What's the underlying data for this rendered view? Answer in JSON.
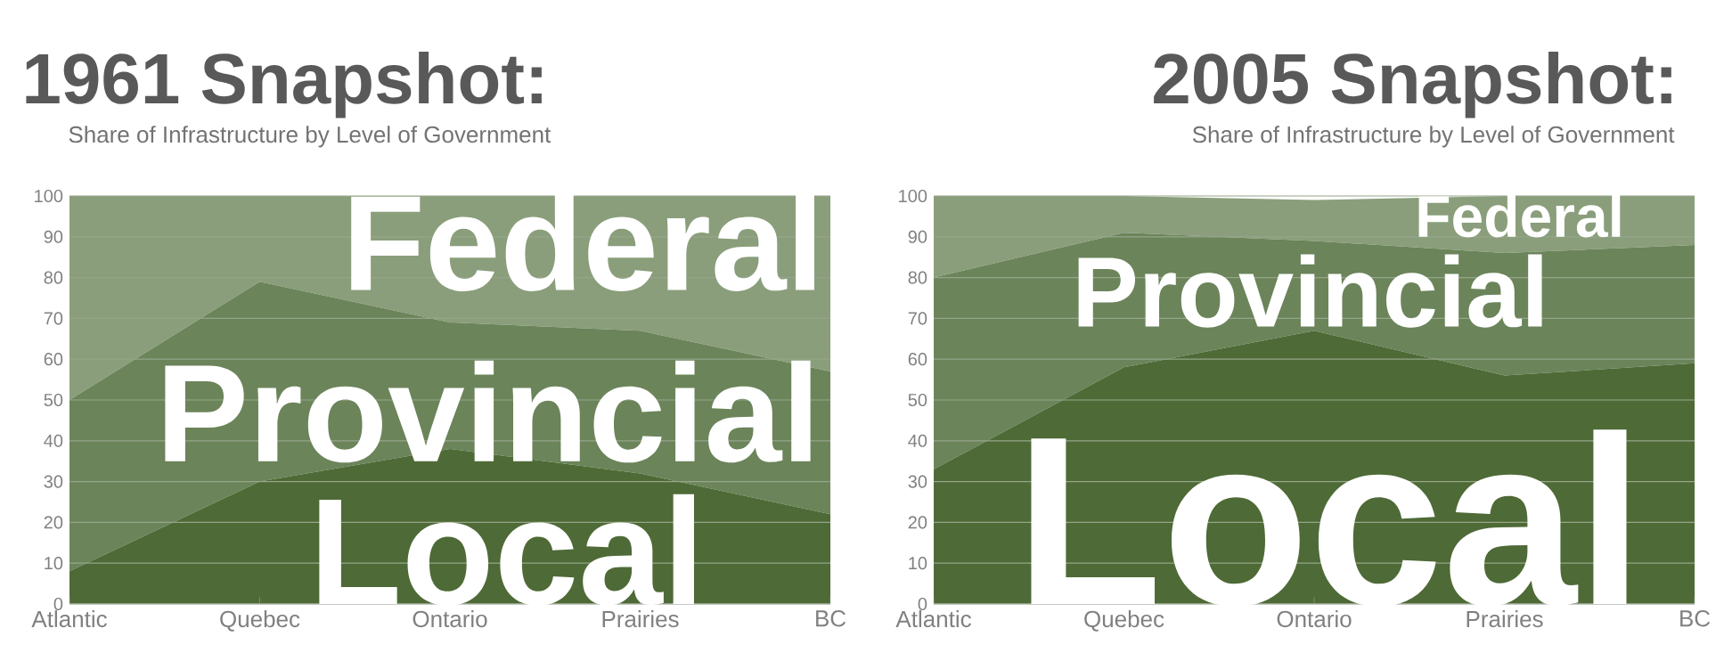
{
  "chart_data": [
    {
      "type": "area",
      "title": "1961 Snapshot:",
      "subtitle": "Share of Infrastructure by Level of Government",
      "categories": [
        "Atlantic",
        "Quebec",
        "Ontario",
        "Prairies",
        "BC"
      ],
      "stacked": true,
      "grid": "y",
      "ylim": [
        0,
        100
      ],
      "yticks": [
        0,
        10,
        20,
        30,
        40,
        50,
        60,
        70,
        80,
        90,
        100
      ],
      "series": [
        {
          "name": "Local",
          "color": "#4e6a36",
          "values": [
            8,
            30,
            38,
            32,
            22
          ]
        },
        {
          "name": "Provincial",
          "color": "#6b845a",
          "values": [
            42,
            49,
            31,
            35,
            35
          ]
        },
        {
          "name": "Federal",
          "color": "#8a9e7b",
          "values": [
            50,
            21,
            31,
            33,
            43
          ]
        }
      ]
    },
    {
      "type": "area",
      "title": "2005 Snapshot:",
      "subtitle": "Share of Infrastructure by Level of Government",
      "categories": [
        "Atlantic",
        "Quebec",
        "Ontario",
        "Prairies",
        "BC"
      ],
      "stacked": true,
      "grid": "y",
      "ylim": [
        0,
        100
      ],
      "yticks": [
        0,
        10,
        20,
        30,
        40,
        50,
        60,
        70,
        80,
        90,
        100
      ],
      "series": [
        {
          "name": "Local",
          "color": "#4e6a36",
          "values": [
            33,
            58,
            67,
            56,
            59
          ]
        },
        {
          "name": "Provincial",
          "color": "#6b845a",
          "values": [
            47,
            33,
            22,
            30,
            29
          ]
        },
        {
          "name": "Federal",
          "color": "#8a9e7b",
          "values": [
            20,
            9,
            10,
            14,
            12
          ]
        }
      ]
    }
  ]
}
